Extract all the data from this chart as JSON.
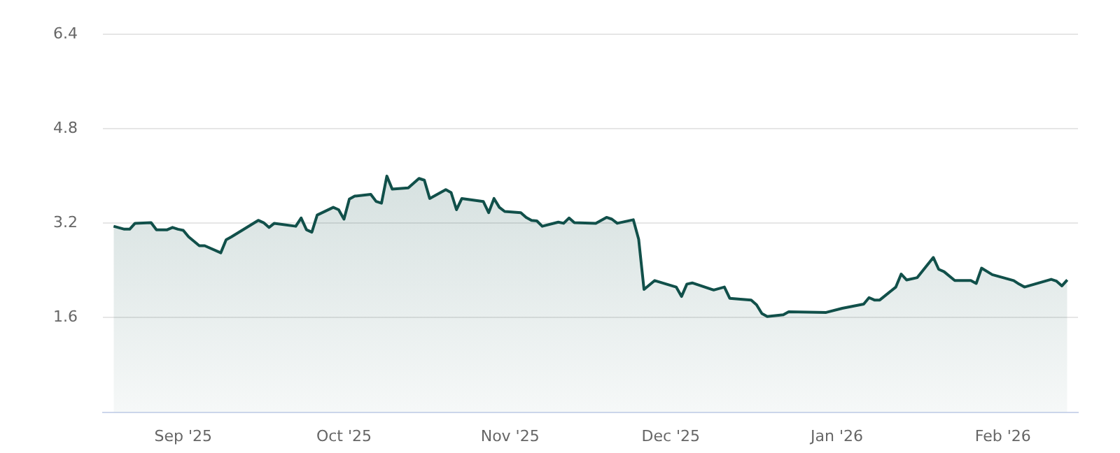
{
  "chart_data": {
    "type": "area",
    "x": [
      "2025-08-19",
      "2025-08-21",
      "2025-08-22",
      "2025-08-23",
      "2025-08-26",
      "2025-08-27",
      "2025-08-29",
      "2025-08-30",
      "2025-08-31",
      "2025-09-01",
      "2025-09-02",
      "2025-09-04",
      "2025-09-05",
      "2025-09-08",
      "2025-09-09",
      "2025-09-10",
      "2025-09-15",
      "2025-09-16",
      "2025-09-17",
      "2025-09-18",
      "2025-09-22",
      "2025-09-23",
      "2025-09-24",
      "2025-09-25",
      "2025-09-26",
      "2025-09-29",
      "2025-09-30",
      "2025-10-01",
      "2025-10-02",
      "2025-10-03",
      "2025-10-06",
      "2025-10-07",
      "2025-10-08",
      "2025-10-09",
      "2025-10-10",
      "2025-10-13",
      "2025-10-15",
      "2025-10-16",
      "2025-10-17",
      "2025-10-20",
      "2025-10-21",
      "2025-10-22",
      "2025-10-23",
      "2025-10-27",
      "2025-10-28",
      "2025-10-29",
      "2025-10-30",
      "2025-10-31",
      "2025-11-03",
      "2025-11-04",
      "2025-11-05",
      "2025-11-06",
      "2025-11-07",
      "2025-11-10",
      "2025-11-11",
      "2025-11-12",
      "2025-11-13",
      "2025-11-17",
      "2025-11-19",
      "2025-11-20",
      "2025-11-21",
      "2025-11-24",
      "2025-11-25",
      "2025-11-26",
      "2025-11-28",
      "2025-12-02",
      "2025-12-03",
      "2025-12-04",
      "2025-12-05",
      "2025-12-09",
      "2025-12-11",
      "2025-12-12",
      "2025-12-16",
      "2025-12-17",
      "2025-12-18",
      "2025-12-19",
      "2025-12-22",
      "2025-12-23",
      "2025-12-30",
      "2026-01-02",
      "2026-01-06",
      "2026-01-07",
      "2026-01-08",
      "2026-01-09",
      "2026-01-12",
      "2026-01-13",
      "2026-01-14",
      "2026-01-16",
      "2026-01-19",
      "2026-01-20",
      "2026-01-21",
      "2026-01-23",
      "2026-01-26",
      "2026-01-27",
      "2026-01-28",
      "2026-01-30",
      "2026-02-03",
      "2026-02-04",
      "2026-02-05",
      "2026-02-10",
      "2026-02-11",
      "2026-02-12",
      "2026-02-13"
    ],
    "series": [
      {
        "color": "#11504a",
        "values": [
          3.15,
          3.1,
          3.1,
          3.2,
          3.21,
          3.09,
          3.09,
          3.13,
          3.1,
          3.08,
          2.97,
          2.82,
          2.82,
          2.7,
          2.92,
          2.97,
          3.25,
          3.21,
          3.13,
          3.2,
          3.15,
          3.29,
          3.09,
          3.05,
          3.34,
          3.47,
          3.43,
          3.27,
          3.61,
          3.66,
          3.69,
          3.57,
          3.54,
          4.0,
          3.78,
          3.8,
          3.96,
          3.93,
          3.62,
          3.77,
          3.72,
          3.43,
          3.62,
          3.57,
          3.38,
          3.62,
          3.47,
          3.4,
          3.38,
          3.3,
          3.25,
          3.24,
          3.15,
          3.22,
          3.2,
          3.29,
          3.21,
          3.2,
          3.3,
          3.27,
          3.2,
          3.26,
          2.93,
          2.08,
          2.23,
          2.12,
          1.96,
          2.17,
          2.19,
          2.07,
          2.12,
          1.93,
          1.9,
          1.82,
          1.67,
          1.62,
          1.65,
          1.7,
          1.69,
          1.76,
          1.83,
          1.94,
          1.9,
          1.9,
          2.12,
          2.34,
          2.24,
          2.28,
          2.62,
          2.42,
          2.38,
          2.23,
          2.23,
          2.18,
          2.44,
          2.33,
          2.23,
          2.17,
          2.12,
          2.25,
          2.22,
          2.14,
          2.24
        ]
      }
    ],
    "xlim": [
      "2025-08-17",
      "2026-02-15"
    ],
    "xticks": [
      {
        "value": "2025-09-01",
        "label": "Sep '25"
      },
      {
        "value": "2025-10-01",
        "label": "Oct '25"
      },
      {
        "value": "2025-11-01",
        "label": "Nov '25"
      },
      {
        "value": "2025-12-01",
        "label": "Dec '25"
      },
      {
        "value": "2026-01-01",
        "label": "Jan '26"
      },
      {
        "value": "2026-02-01",
        "label": "Feb '26"
      }
    ],
    "ylim": [
      0,
      6.4
    ],
    "yticks": [
      1.6,
      3.2,
      4.8,
      6.4
    ],
    "grid": "y",
    "legend": false,
    "marker": "none",
    "line_style": "solid"
  }
}
